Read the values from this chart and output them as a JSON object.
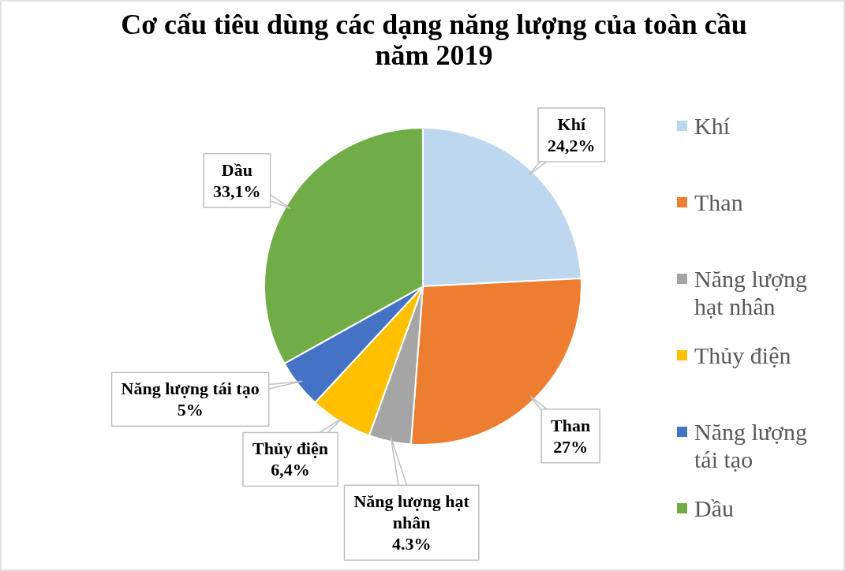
{
  "chart_data": {
    "type": "pie",
    "title": "Cơ cấu tiêu dùng các dạng năng lượng của toàn cầu năm 2019",
    "categories": [
      "Khí",
      "Than",
      "Năng lượng hạt nhân",
      "Thủy điện",
      "Năng lượng tái tạo",
      "Dầu"
    ],
    "values": [
      24.2,
      27,
      4.3,
      6.4,
      5,
      33.1
    ],
    "colors": [
      "#bdd7ee",
      "#ed7d31",
      "#a5a5a5",
      "#ffc000",
      "#4472c4",
      "#70ad47"
    ],
    "value_labels": [
      "24,2%",
      "27%",
      "4.3%",
      "6,4%",
      "5%",
      "33,1%"
    ],
    "legend": "right"
  }
}
